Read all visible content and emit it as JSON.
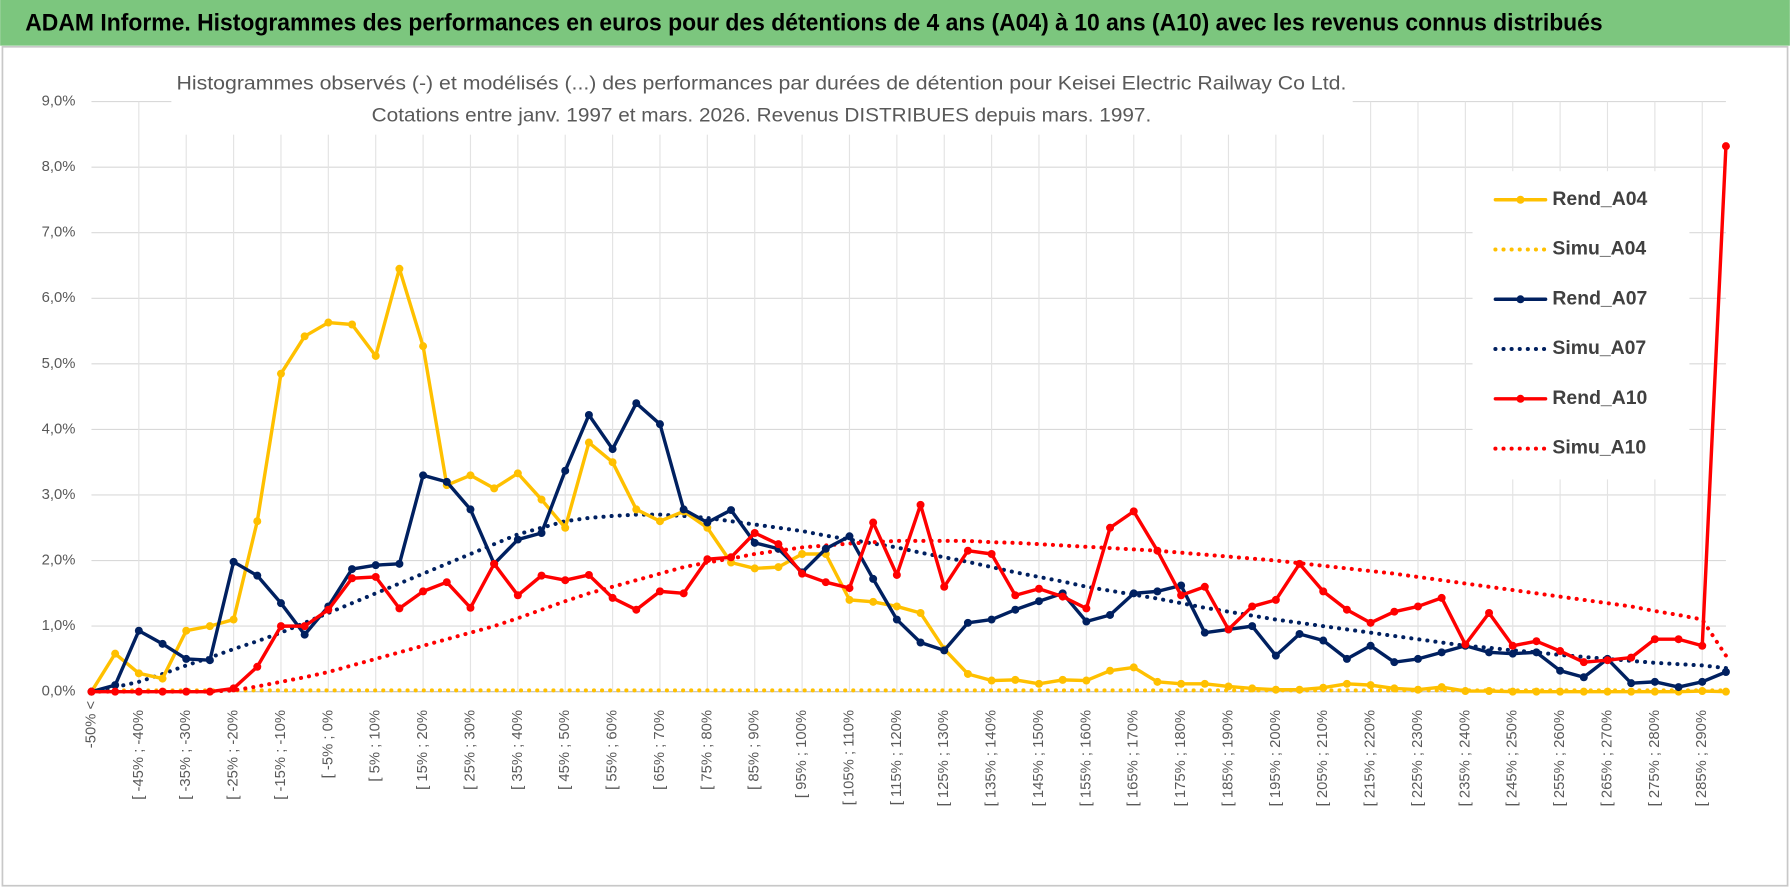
{
  "header": {
    "title": "ADAM Informe. Histogrammes des performances en euros pour des détentions de 4 ans (A04) à 10 ans (A10) avec les revenus connus distribués"
  },
  "chart_data": {
    "type": "line",
    "title": [
      "Histogrammes observés (-) et modélisés (...) des performances par durées de détention pour Keisei Electric Railway Co Ltd.",
      "Cotations entre janv. 1997 et mars. 2026. Revenus DISTRIBUES depuis mars. 1997."
    ],
    "categories": [
      "-50% <",
      null,
      "[ -45% ; -40%",
      null,
      "[ -35% ; -30%",
      null,
      "[ -25% ; -20%",
      null,
      "[ -15% ; -10%",
      null,
      "[ -5% ; 0%",
      null,
      "[ 5% ; 10%",
      null,
      "[ 15% ; 20%",
      null,
      "[ 25% ; 30%",
      null,
      "[ 35% ; 40%",
      null,
      "[ 45% ; 50%",
      null,
      "[ 55% ; 60%",
      null,
      "[ 65% ; 70%",
      null,
      "[ 75% ; 80%",
      null,
      "[ 85% ; 90%",
      null,
      "[ 95% ; 100%",
      null,
      "[ 105% ; 110%",
      null,
      "[ 115% ; 120%",
      null,
      "[ 125% ; 130%",
      null,
      "[ 135% ; 140%",
      null,
      "[ 145% ; 150%",
      null,
      "[ 155% ; 160%",
      null,
      "[ 165% ; 170%",
      null,
      "[ 175% ; 180%",
      null,
      "[ 185% ; 190%",
      null,
      "[ 195% ; 200%",
      null,
      "[ 205% ; 210%",
      null,
      "[ 215% ; 220%",
      null,
      "[ 225% ; 230%",
      null,
      "[ 235% ; 240%",
      null,
      "[ 245% ; 250%",
      null,
      "[ 255% ; 260%",
      null,
      "[ 265% ; 270%",
      null,
      "[ 275% ; 280%",
      null,
      "[ 285% ; 290%",
      null
    ],
    "ylim": [
      0,
      9
    ],
    "yticks": [
      {
        "value": 0,
        "label": "0,0%"
      },
      {
        "value": 1,
        "label": "1,0%"
      },
      {
        "value": 2,
        "label": "2,0%"
      },
      {
        "value": 3,
        "label": "3,0%"
      },
      {
        "value": 4,
        "label": "4,0%"
      },
      {
        "value": 5,
        "label": "5,0%"
      },
      {
        "value": 6,
        "label": "6,0%"
      },
      {
        "value": 7,
        "label": "7,0%"
      },
      {
        "value": 8,
        "label": "8,0%"
      },
      {
        "value": 9,
        "label": "9,0%"
      }
    ],
    "grid": true,
    "legend": "right",
    "series": [
      {
        "name": "Rend_A04",
        "color": "#FFC000",
        "line_style": "solid",
        "markers": true,
        "values": [
          0,
          0.58,
          0.28,
          0.2,
          0.93,
          1.0,
          1.1,
          2.6,
          4.85,
          5.42,
          5.63,
          5.6,
          5.12,
          6.45,
          5.27,
          3.15,
          3.3,
          3.1,
          3.33,
          2.93,
          2.5,
          3.8,
          3.5,
          2.78,
          2.6,
          2.75,
          2.5,
          1.97,
          1.88,
          1.9,
          2.1,
          2.1,
          1.4,
          1.37,
          1.3,
          1.2,
          0.65,
          0.27,
          0.17,
          0.18,
          0.12,
          0.18,
          0.17,
          0.32,
          0.37,
          0.15,
          0.12,
          0.12,
          0.08,
          0.05,
          0.03,
          0.03,
          0.06,
          0.12,
          0.1,
          0.05,
          0.03,
          0.07,
          0.01,
          0.01,
          0,
          0,
          0,
          0,
          0,
          0,
          0,
          0,
          0.01,
          0
        ]
      },
      {
        "name": "Simu_A04",
        "color": "#FFC000",
        "line_style": "dotted",
        "markers": false,
        "values": [
          0.02,
          0.02,
          0.02,
          0.02,
          0.02,
          0.02,
          0.02,
          0.02,
          0.02,
          0.02,
          0.02,
          0.02,
          0.02,
          0.02,
          0.02,
          0.02,
          0.02,
          0.02,
          0.02,
          0.02,
          0.02,
          0.02,
          0.02,
          0.02,
          0.02,
          0.02,
          0.02,
          0.02,
          0.02,
          0.02,
          0.02,
          0.02,
          0.02,
          0.02,
          0.02,
          0.02,
          0.02,
          0.02,
          0.02,
          0.02,
          0.02,
          0.02,
          0.02,
          0.02,
          0.02,
          0.02,
          0.02,
          0.02,
          0.02,
          0.02,
          0.02,
          0.02,
          0.02,
          0.02,
          0.02,
          0.02,
          0.02,
          0.02,
          0.02,
          0.02,
          0.02,
          0.02,
          0.02,
          0.02,
          0.02,
          0.02,
          0.02,
          0.02,
          0.02,
          0.02
        ]
      },
      {
        "name": "Rend_A07",
        "color": "#002060",
        "line_style": "solid",
        "markers": true,
        "values": [
          0,
          0.1,
          0.93,
          0.73,
          0.5,
          0.48,
          1.98,
          1.77,
          1.35,
          0.87,
          1.3,
          1.87,
          1.93,
          1.95,
          3.3,
          3.2,
          2.78,
          1.95,
          2.32,
          2.42,
          3.37,
          4.22,
          3.7,
          4.4,
          4.08,
          2.78,
          2.58,
          2.77,
          2.27,
          2.18,
          1.82,
          2.18,
          2.37,
          1.72,
          1.1,
          0.75,
          0.63,
          1.05,
          1.1,
          1.25,
          1.38,
          1.5,
          1.07,
          1.17,
          1.5,
          1.53,
          1.62,
          0.9,
          0.95,
          1.0,
          0.55,
          0.88,
          0.78,
          0.5,
          0.7,
          0.45,
          0.5,
          0.6,
          0.7,
          0.6,
          0.58,
          0.6,
          0.32,
          0.22,
          0.5,
          0.13,
          0.15,
          0.07,
          0.15,
          0.3
        ]
      },
      {
        "name": "Simu_A07",
        "color": "#002060",
        "line_style": "dotted",
        "markers": false,
        "values": [
          0,
          0.07,
          0.15,
          0.27,
          0.4,
          0.52,
          0.65,
          0.77,
          0.9,
          1.05,
          1.2,
          1.35,
          1.5,
          1.65,
          1.8,
          1.95,
          2.1,
          2.25,
          2.4,
          2.5,
          2.6,
          2.65,
          2.68,
          2.7,
          2.7,
          2.68,
          2.65,
          2.6,
          2.55,
          2.5,
          2.45,
          2.38,
          2.32,
          2.26,
          2.2,
          2.12,
          2.05,
          1.98,
          1.9,
          1.82,
          1.75,
          1.68,
          1.6,
          1.54,
          1.48,
          1.42,
          1.35,
          1.28,
          1.22,
          1.16,
          1.1,
          1.05,
          1.0,
          0.95,
          0.9,
          0.85,
          0.8,
          0.75,
          0.7,
          0.67,
          0.63,
          0.6,
          0.56,
          0.53,
          0.5,
          0.47,
          0.44,
          0.42,
          0.4,
          0.36
        ]
      },
      {
        "name": "Rend_A10",
        "color": "#FF0000",
        "line_style": "solid",
        "markers": true,
        "values": [
          0,
          0,
          0,
          0,
          0,
          0,
          0.05,
          0.38,
          1.0,
          1.0,
          1.25,
          1.73,
          1.75,
          1.27,
          1.53,
          1.67,
          1.28,
          1.95,
          1.47,
          1.77,
          1.7,
          1.78,
          1.43,
          1.25,
          1.53,
          1.5,
          2.02,
          2.05,
          2.42,
          2.25,
          1.8,
          1.67,
          1.58,
          2.58,
          1.78,
          2.85,
          1.6,
          2.15,
          2.1,
          1.47,
          1.57,
          1.45,
          1.27,
          2.5,
          2.75,
          2.15,
          1.47,
          1.6,
          0.95,
          1.3,
          1.4,
          1.95,
          1.53,
          1.25,
          1.05,
          1.22,
          1.3,
          1.43,
          0.72,
          1.2,
          0.7,
          0.77,
          0.62,
          0.45,
          0.48,
          0.52,
          0.8,
          0.8,
          0.7,
          8.32
        ]
      },
      {
        "name": "Simu_A10",
        "color": "#FF0000",
        "line_style": "dotted",
        "markers": false,
        "values": [
          0,
          0,
          0,
          0,
          0,
          0,
          0.02,
          0.08,
          0.15,
          0.22,
          0.3,
          0.4,
          0.5,
          0.6,
          0.7,
          0.8,
          0.9,
          1.0,
          1.12,
          1.25,
          1.38,
          1.5,
          1.6,
          1.7,
          1.8,
          1.9,
          1.97,
          2.03,
          2.1,
          2.15,
          2.2,
          2.23,
          2.26,
          2.28,
          2.3,
          2.3,
          2.3,
          2.3,
          2.28,
          2.27,
          2.25,
          2.23,
          2.21,
          2.19,
          2.17,
          2.15,
          2.12,
          2.09,
          2.06,
          2.03,
          2.0,
          1.96,
          1.92,
          1.88,
          1.84,
          1.8,
          1.75,
          1.7,
          1.65,
          1.6,
          1.55,
          1.5,
          1.45,
          1.4,
          1.35,
          1.3,
          1.23,
          1.17,
          1.1,
          0.55
        ]
      }
    ]
  }
}
